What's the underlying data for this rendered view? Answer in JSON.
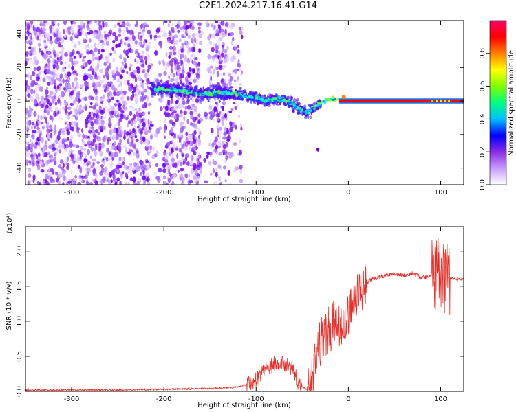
{
  "title": "C2E1.2024.217.16.41.G14",
  "charts": {
    "spectrogram": {
      "type": "heatmap",
      "xlabel": "Height of straight line (km)",
      "ylabel": "Frequency (Hz)",
      "xlim": [
        -350,
        125
      ],
      "ylim": [
        -50,
        48
      ],
      "xticks": [
        -300,
        -200,
        -100,
        0,
        100
      ],
      "xtick_labels": [
        "-300",
        "-200",
        "-100",
        "0",
        "100"
      ],
      "yticks": [
        -40,
        -20,
        0,
        20,
        40
      ],
      "ytick_labels": [
        "-40",
        "-20",
        "0",
        "20",
        "40"
      ],
      "colorbar": {
        "label": "Normalized spectral amplitude",
        "range": [
          0,
          1
        ],
        "ticks": [
          0,
          0.2,
          0.4,
          0.6,
          0.8
        ],
        "tick_labels": [
          "0.0",
          "0.2",
          "0.4",
          "0.6",
          "0.8"
        ],
        "colors": [
          "#ffffff",
          "#c79cff",
          "#8a2be2",
          "#0000ff",
          "#00bfff",
          "#00ff7f",
          "#7fff00",
          "#ffff00",
          "#ff7f00",
          "#ff0000",
          "#ff0066"
        ]
      },
      "ridge": {
        "x": [
          -215,
          -200,
          -180,
          -160,
          -140,
          -120,
          -100,
          -90,
          -80,
          -70,
          -60,
          -52,
          -45,
          -40,
          -35,
          -30,
          -25,
          -20,
          -10,
          -5,
          0,
          10,
          50,
          100,
          125
        ],
        "y": [
          8,
          7,
          6,
          4,
          5,
          4,
          2,
          0,
          1,
          1,
          -2,
          -5,
          -7,
          -5,
          -3,
          -1,
          0,
          1,
          2,
          1,
          0,
          0,
          0,
          0,
          0
        ]
      },
      "bright_segments": [
        {
          "x_start": -10,
          "x_end": 125,
          "y": 0,
          "color": "#ff0000"
        },
        {
          "x_start": 90,
          "x_end": 110,
          "y": 0,
          "color": "#ffff00"
        }
      ],
      "isolated_blob": {
        "x": -33,
        "y": -29
      }
    },
    "snr": {
      "type": "line",
      "xlabel": "Height of straight line (km)",
      "ylabel": "SNR (10 * v/v)",
      "y_multiplier": "(x10⁴)",
      "xlim": [
        -350,
        125
      ],
      "ylim": [
        0,
        2.35
      ],
      "xticks": [
        -300,
        -200,
        -100,
        0,
        100
      ],
      "xtick_labels": [
        "-300",
        "-200",
        "-100",
        "0",
        "100"
      ],
      "yticks": [
        0.0,
        0.5,
        1.0,
        1.5,
        2.0
      ],
      "ytick_labels": [
        "0.0",
        "0.5",
        "1.0",
        "1.5",
        "2.0"
      ],
      "color": "#e8302a",
      "x": [
        -350,
        -300,
        -250,
        -200,
        -150,
        -120,
        -105,
        -95,
        -85,
        -80,
        -75,
        -70,
        -65,
        -60,
        -55,
        -50,
        -45,
        -40,
        -35,
        -30,
        -25,
        -20,
        -15,
        -10,
        -5,
        0,
        5,
        10,
        15,
        20,
        25,
        30,
        40,
        50,
        60,
        70,
        80,
        90,
        95,
        100,
        105,
        110,
        115,
        125
      ],
      "y": [
        0.02,
        0.02,
        0.02,
        0.03,
        0.04,
        0.06,
        0.12,
        0.25,
        0.35,
        0.4,
        0.42,
        0.4,
        0.35,
        0.32,
        0.15,
        0.05,
        0.04,
        0.1,
        0.5,
        0.7,
        0.85,
        0.9,
        1.0,
        0.95,
        1.05,
        1.1,
        1.25,
        1.35,
        1.48,
        1.55,
        1.6,
        1.62,
        1.65,
        1.67,
        1.66,
        1.68,
        1.62,
        1.65,
        1.7,
        1.7,
        1.6,
        1.62,
        1.6,
        1.6
      ]
    }
  }
}
